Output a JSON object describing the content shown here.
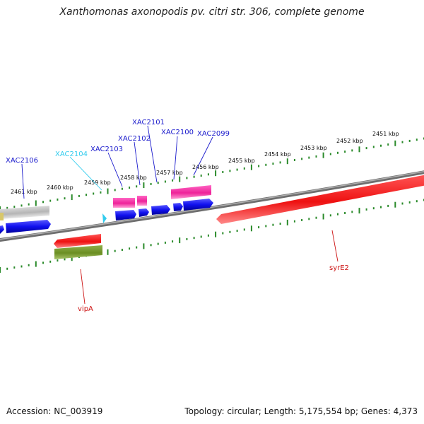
{
  "title": "Xanthomonas axonopodis pv. citri str. 306, complete genome",
  "footer": {
    "accession": "Accession: NC_003919",
    "summary": "Topology: circular; Length: 5,175,554 bp; Genes: 4,373"
  },
  "scale_ticks": [
    "2451 kbp",
    "2452 kbp",
    "2453 kbp",
    "2454 kbp",
    "2455 kbp",
    "2456 kbp",
    "2457 kbp",
    "2458 kbp",
    "2459 kbp",
    "2460 kbp",
    "2461 kbp"
  ],
  "gene_labels": [
    {
      "text": "XAC2106",
      "color": "#1a1acc"
    },
    {
      "text": "XAC2104",
      "color": "#33ccee"
    },
    {
      "text": "XAC2103",
      "color": "#1a1acc"
    },
    {
      "text": "XAC2102",
      "color": "#1a1acc"
    },
    {
      "text": "XAC2101",
      "color": "#1a1acc"
    },
    {
      "text": "XAC2100",
      "color": "#1a1acc"
    },
    {
      "text": "XAC2099",
      "color": "#1a1acc"
    },
    {
      "text": "vipA",
      "color": "#cc1111"
    },
    {
      "text": "syrE2",
      "color": "#cc1111"
    }
  ],
  "colors": {
    "backbone": "#888888",
    "forward_cds": "#1010ee",
    "rrna": "#ee2299",
    "reverse_cds": "#ee1111",
    "other": "#6b8e23",
    "pseudo": "#bbbbbb",
    "marker": "#33ccee",
    "tick": "#2a8a2a"
  }
}
